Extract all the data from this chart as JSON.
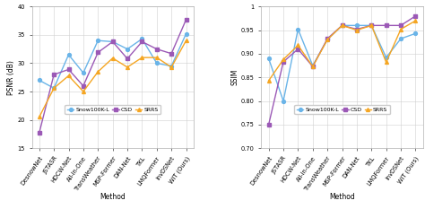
{
  "methods": [
    "DesnowNet",
    "JSTASR",
    "HDCW-Net",
    "All-in-One",
    "TransWeather",
    "MSP-Former",
    "DAN-Net",
    "TKL",
    "LMQFormer",
    "InvDSNet",
    "WiT (Ours)"
  ],
  "psnr": {
    "Snow100K-L": [
      27.0,
      25.6,
      31.5,
      28.3,
      34.0,
      33.8,
      32.5,
      34.3,
      30.0,
      29.5,
      35.2
    ],
    "CSD": [
      17.7,
      28.0,
      28.9,
      26.0,
      31.9,
      33.8,
      30.8,
      33.8,
      32.5,
      31.7,
      37.7
    ],
    "SRRS": [
      20.5,
      25.6,
      27.8,
      25.0,
      28.5,
      30.9,
      29.3,
      31.0,
      31.0,
      29.3,
      34.0
    ]
  },
  "ssim": {
    "Snow100K-L": [
      0.89,
      0.8,
      0.952,
      0.875,
      0.93,
      0.96,
      0.96,
      0.96,
      0.892,
      0.932,
      0.943
    ],
    "CSD": [
      0.75,
      0.883,
      0.91,
      0.873,
      0.932,
      0.96,
      0.952,
      0.96,
      0.96,
      0.96,
      0.98
    ],
    "SRRS": [
      0.843,
      0.888,
      0.918,
      0.873,
      0.93,
      0.96,
      0.95,
      0.96,
      0.882,
      0.952,
      0.97
    ]
  },
  "colors": {
    "Snow100K-L": "#6ab4e8",
    "CSD": "#9B59B6",
    "SRRS": "#F5A623"
  },
  "markers": {
    "Snow100K-L": "o",
    "CSD": "s",
    "SRRS": "^"
  },
  "psnr_ylim": [
    15,
    40
  ],
  "ssim_ylim": [
    0.7,
    1.0
  ],
  "psnr_yticks": [
    15,
    20,
    25,
    30,
    35,
    40
  ],
  "ssim_yticks": [
    0.7,
    0.75,
    0.8,
    0.85,
    0.9,
    0.95,
    1.0
  ],
  "xlabel": "Method",
  "psnr_ylabel": "PSNR (dB)",
  "ssim_ylabel": "SSIM",
  "background_color": "#ffffff",
  "grid_color": "#d0d0d0",
  "linewidth": 1.0,
  "markersize": 2.8,
  "font_size": 4.8,
  "legend_fontsize": 4.5,
  "label_fontsize": 5.5
}
